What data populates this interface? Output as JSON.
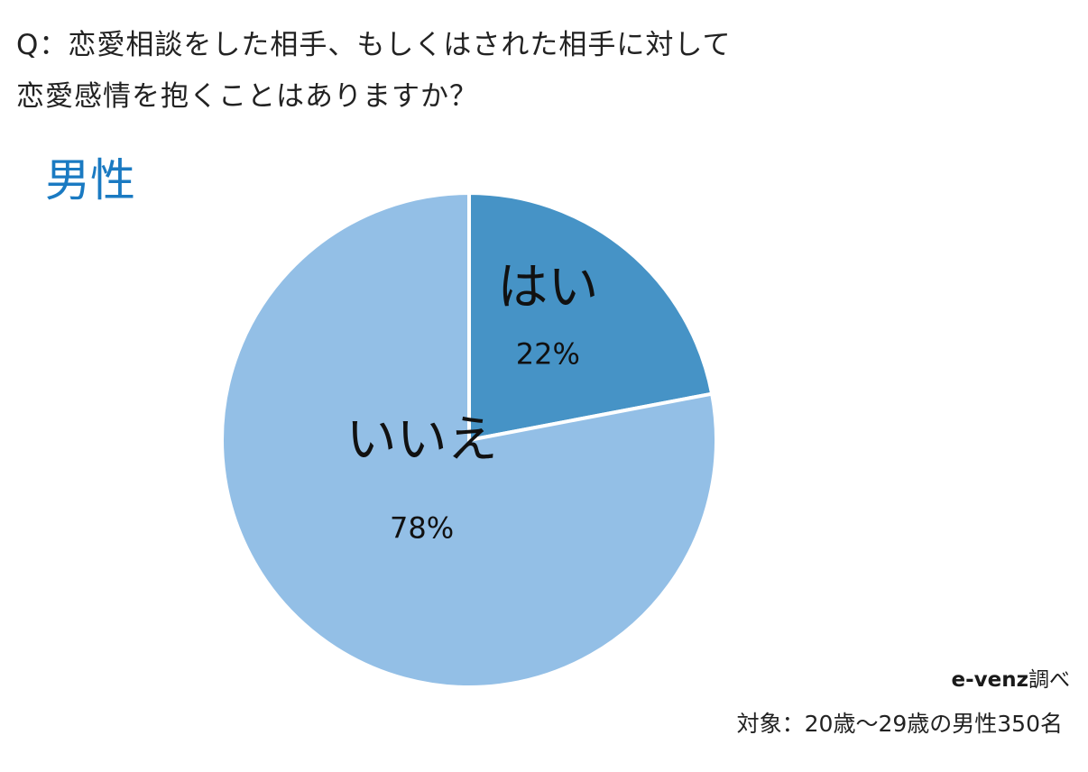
{
  "question": {
    "line1": "Q：恋愛相談をした相手、もしくはされた相手に対して",
    "line2": "恋愛感情を抱くことはありますか？"
  },
  "gender_label": "男性",
  "credit": {
    "brand": "e-venz",
    "suffix": "調べ"
  },
  "footnote": "対象：20歳〜29歳の男性350名",
  "colors": {
    "yes": "#4693c6",
    "no": "#93bfe6",
    "accent": "#1a7ac2"
  },
  "chart_data": {
    "type": "pie",
    "slices": [
      {
        "label": "はい",
        "value": 22,
        "value_label": "22%",
        "color": "#4693c6"
      },
      {
        "label": "いいえ",
        "value": 78,
        "value_label": "78%",
        "color": "#93bfe6"
      }
    ]
  }
}
